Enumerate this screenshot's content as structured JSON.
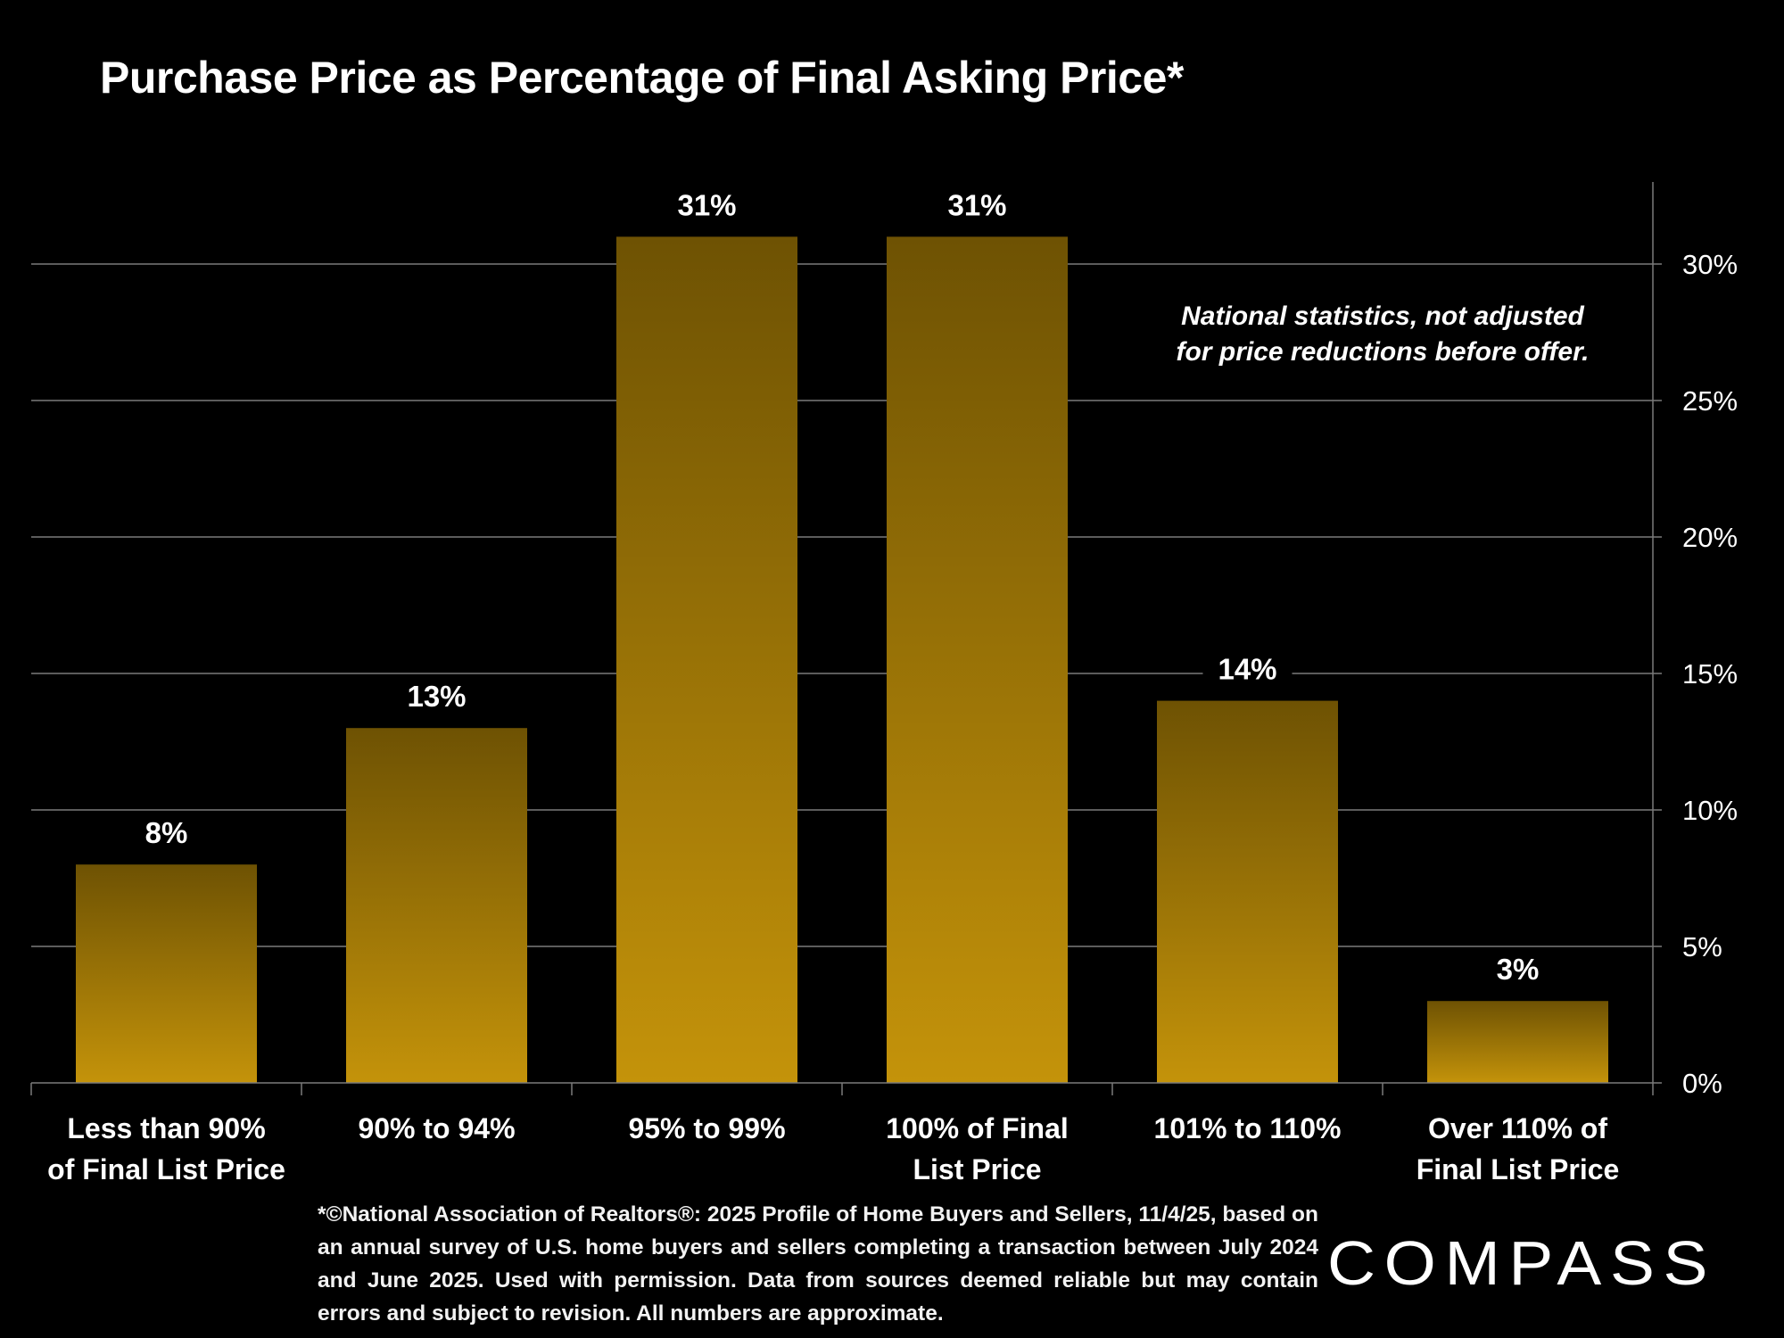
{
  "title": "Purchase Price as Percentage of Final Asking Price*",
  "annotation": {
    "line1": "National statistics, not adjusted",
    "line2": "for price reductions before offer."
  },
  "footnote": "*©National Association of Realtors®: 2025 Profile of Home Buyers and Sellers, 11/4/25, based on an annual survey of U.S. home buyers and sellers completing a transaction between July 2024 and June 2025. Used with permission. Data from sources deemed reliable but may contain errors and subject to revision. All numbers are approximate.",
  "logo_text": "COMPASS",
  "colors": {
    "background": "#000000",
    "bar_top": "#6e5203",
    "bar_bottom": "#c4930a",
    "gridline": "#7a7a7a",
    "text": "#ffffff"
  },
  "chart_data": {
    "type": "bar",
    "title": "Purchase Price as Percentage of Final Asking Price*",
    "categories": [
      [
        "Less than 90%",
        "of Final List Price"
      ],
      [
        "90% to 94%"
      ],
      [
        "95% to 99%"
      ],
      [
        "100% of Final",
        "List Price"
      ],
      [
        "101% to 110%"
      ],
      [
        "Over 110% of",
        "Final List Price"
      ]
    ],
    "values": [
      8,
      13,
      31,
      31,
      14,
      3
    ],
    "data_labels": [
      "8%",
      "13%",
      "31%",
      "31%",
      "14%",
      "3%"
    ],
    "ylim": [
      0,
      33
    ],
    "yticks": [
      0,
      5,
      10,
      15,
      20,
      25,
      30
    ],
    "ytick_labels": [
      "0%",
      "5%",
      "10%",
      "15%",
      "20%",
      "25%",
      "30%"
    ],
    "y_axis_side": "right",
    "grid": true,
    "legend": "none"
  }
}
